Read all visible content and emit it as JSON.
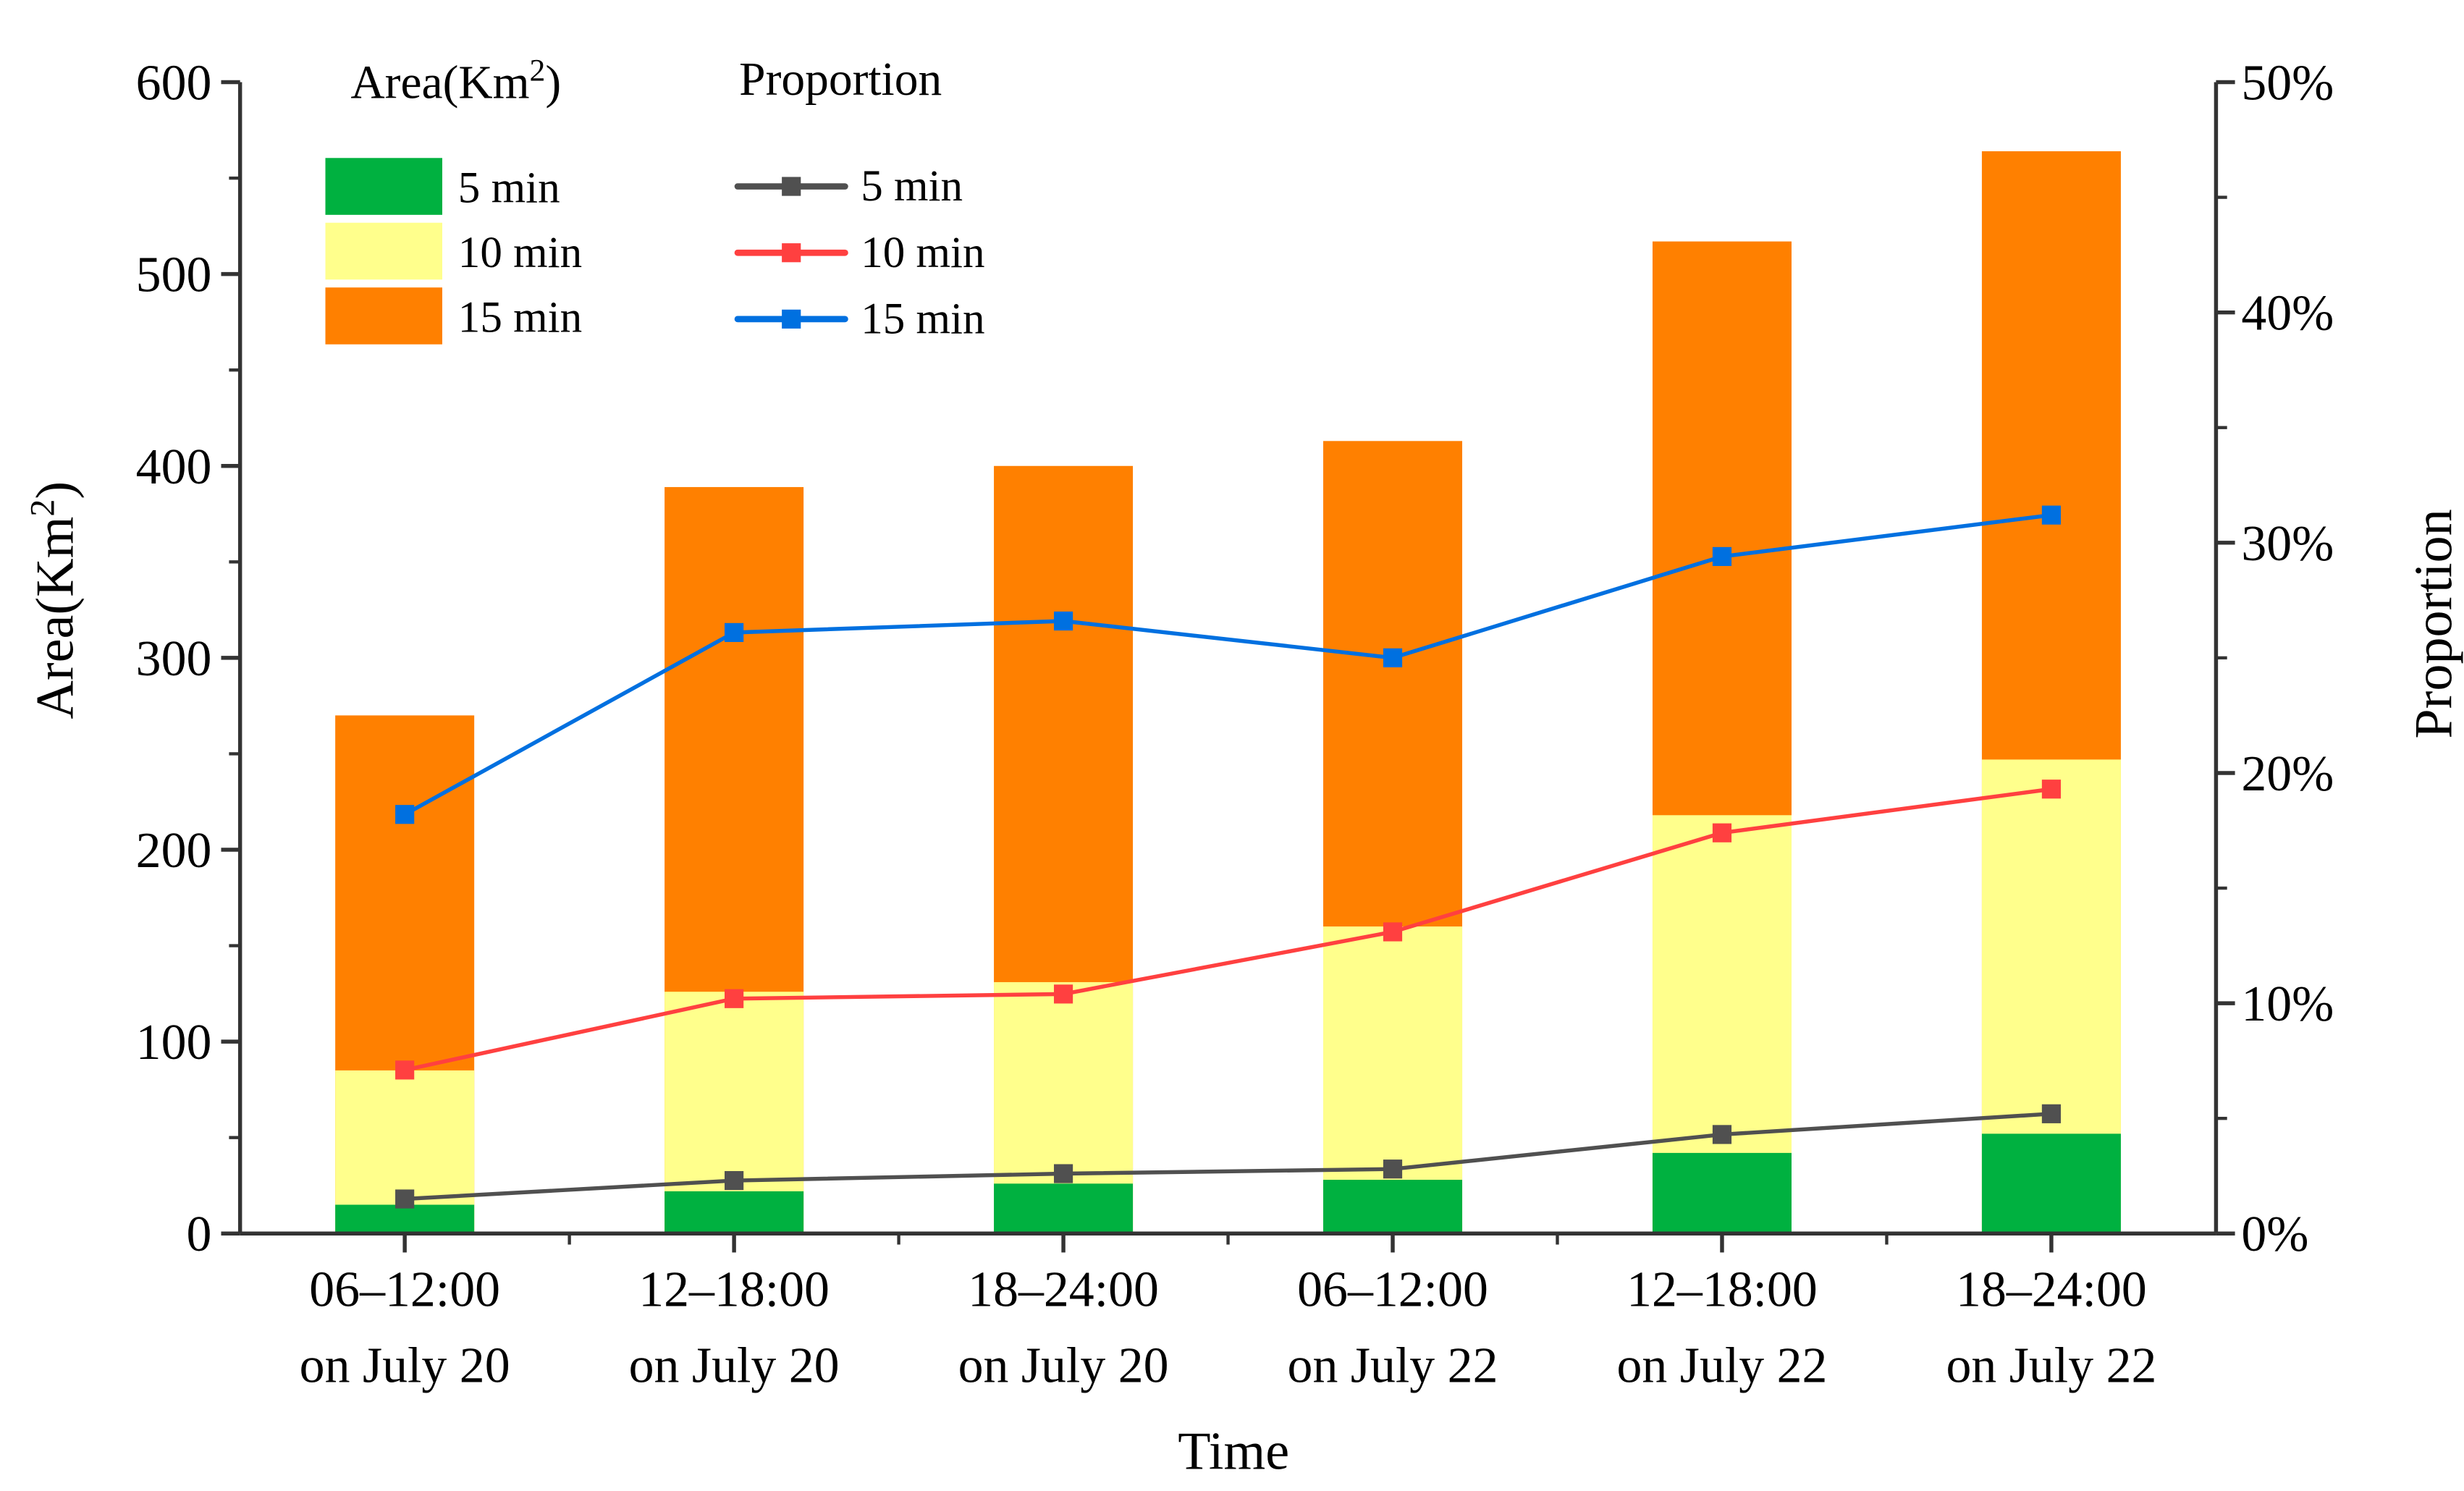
{
  "chart_data": {
    "type": "bar",
    "subtype": "overlapping bars (area) with line series (proportion) on secondary axis",
    "categories": [
      [
        "06–12:00",
        "on July 20"
      ],
      [
        "12–18:00",
        "on July 20"
      ],
      [
        "18–24:00",
        "on July 20"
      ],
      [
        "06–12:00",
        "on July 22"
      ],
      [
        "12–18:00",
        "on July 22"
      ],
      [
        "18–24:00",
        "on July 22"
      ]
    ],
    "xlabel": "Time",
    "ylabel": "Area(Km",
    "ylabel_sup": "2",
    "ylabel_close": ")",
    "y2label": "Proportion",
    "ylim": [
      0,
      600
    ],
    "yticks": [
      "0",
      "100",
      "200",
      "300",
      "400",
      "500",
      "600"
    ],
    "y2lim": [
      0,
      50
    ],
    "y2ticks": [
      "0%",
      "10%",
      "20%",
      "30%",
      "40%",
      "50%"
    ],
    "area_series": [
      {
        "name": "15 min",
        "color": "#FF8000",
        "values": [
          270,
          389,
          400,
          413,
          517,
          564
        ]
      },
      {
        "name": "10 min",
        "color": "#FFFF8C",
        "values": [
          85,
          126,
          131,
          160,
          218,
          247
        ]
      },
      {
        "name": "5 min",
        "color": "#00B140",
        "values": [
          15,
          22,
          26,
          28,
          42,
          52
        ]
      }
    ],
    "proportion_series": [
      {
        "name": "5 min",
        "color": "#505050",
        "values": [
          1.5,
          2.3,
          2.6,
          2.8,
          4.3,
          5.2
        ]
      },
      {
        "name": "10 min",
        "color": "#FF4040",
        "values": [
          7.1,
          10.2,
          10.4,
          13.1,
          17.4,
          19.3
        ]
      },
      {
        "name": "15 min",
        "color": "#0070E0",
        "values": [
          18.2,
          26.1,
          26.6,
          25.0,
          29.4,
          31.2
        ]
      }
    ],
    "legend": {
      "placement": "top-left",
      "area_title": "Area(Km",
      "area_title_sup": "2",
      "area_title_close": ")",
      "proportion_title": "Proportion",
      "area_items": [
        "5 min",
        "10 min",
        "15 min"
      ],
      "proportion_items": [
        "5 min",
        "10 min",
        "15 min"
      ]
    }
  }
}
